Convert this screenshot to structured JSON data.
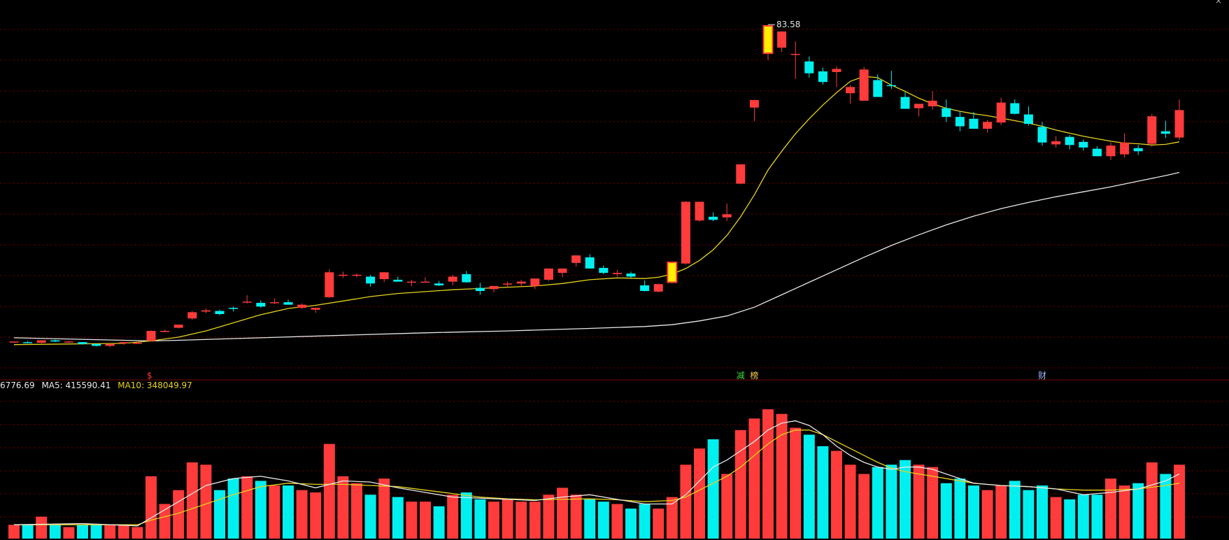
{
  "chart_data": [
    {
      "type": "candlestick",
      "title": "",
      "peak_label": "83.58",
      "markers": [
        {
          "text": "$",
          "index": 10,
          "color": "#ff3b3b"
        },
        {
          "text": "减",
          "index": 53,
          "color": "#3bdc3b"
        },
        {
          "text": "榜",
          "index": 54,
          "color": "#ffd24a"
        },
        {
          "text": "财",
          "index": 75,
          "color": "#9fb6ff"
        }
      ],
      "ylim": [
        30.5,
        86
      ],
      "grid": true,
      "colors": {
        "up": "#ff3b3b",
        "down": "#00f0f0",
        "highlight": "#ffee00",
        "ma_short": "#e6d21c",
        "ma_long": "#e8e8e8"
      },
      "ohlc": [
        [
          33.4,
          33.5,
          33.3,
          33.5
        ],
        [
          33.4,
          33.6,
          33.3,
          33.3
        ],
        [
          33.3,
          33.7,
          33.2,
          33.7
        ],
        [
          33.7,
          33.8,
          33.4,
          33.5
        ],
        [
          33.5,
          33.6,
          33.3,
          33.5
        ],
        [
          33.4,
          33.4,
          33.0,
          33.1
        ],
        [
          33.1,
          33.1,
          32.7,
          32.8
        ],
        [
          32.8,
          33.2,
          32.6,
          33.1
        ],
        [
          33.2,
          33.4,
          33.0,
          33.4
        ],
        [
          33.3,
          33.5,
          33.2,
          33.3
        ],
        [
          33.6,
          35.3,
          33.5,
          35.2
        ],
        [
          35.2,
          35.4,
          35.0,
          35.2
        ],
        [
          35.7,
          36.2,
          35.6,
          36.2
        ],
        [
          37.2,
          38.4,
          37.0,
          38.2
        ],
        [
          38.3,
          38.8,
          38.0,
          38.5
        ],
        [
          38.4,
          38.6,
          37.7,
          37.9
        ],
        [
          38.9,
          39.1,
          38.3,
          38.8
        ],
        [
          39.9,
          40.9,
          39.6,
          39.9
        ],
        [
          39.7,
          40.1,
          38.9,
          39.1
        ],
        [
          39.8,
          40.4,
          39.5,
          39.8
        ],
        [
          39.8,
          40.2,
          39.4,
          39.4
        ],
        [
          38.9,
          39.6,
          38.7,
          39.4
        ],
        [
          38.6,
          38.9,
          38.1,
          38.9
        ],
        [
          40.6,
          45.1,
          40.5,
          44.6
        ],
        [
          44.2,
          44.7,
          43.7,
          44.2
        ],
        [
          44.2,
          44.4,
          43.8,
          44.2
        ],
        [
          43.9,
          44.2,
          42.3,
          42.8
        ],
        [
          43.5,
          44.6,
          43.0,
          44.6
        ],
        [
          43.4,
          43.9,
          43.1,
          43.1
        ],
        [
          43.1,
          43.4,
          42.4,
          43.1
        ],
        [
          43.1,
          43.8,
          43.0,
          43.1
        ],
        [
          42.8,
          43.2,
          42.4,
          42.5
        ],
        [
          43.1,
          44.2,
          42.5,
          43.9
        ],
        [
          44.3,
          44.8,
          42.9,
          43.0
        ],
        [
          42.1,
          42.9,
          41.0,
          41.6
        ],
        [
          41.9,
          42.4,
          41.4,
          42.4
        ],
        [
          42.8,
          43.1,
          42.2,
          42.8
        ],
        [
          42.8,
          43.4,
          42.3,
          43.1
        ],
        [
          42.4,
          43.4,
          41.9,
          43.6
        ],
        [
          43.4,
          45.0,
          43.2,
          45.2
        ],
        [
          44.5,
          45.2,
          43.8,
          45.2
        ],
        [
          46.1,
          47.0,
          45.5,
          47.3
        ],
        [
          47.0,
          47.5,
          45.2,
          45.2
        ],
        [
          45.3,
          45.7,
          44.3,
          44.5
        ],
        [
          44.3,
          45.0,
          43.9,
          44.5
        ],
        [
          44.4,
          44.7,
          43.7,
          43.9
        ],
        [
          42.5,
          43.3,
          41.5,
          41.6
        ],
        [
          41.5,
          42.8,
          41.4,
          42.7
        ],
        [
          43.0,
          46.2,
          42.8,
          46.2
        ],
        [
          46.0,
          56.0,
          45.8,
          55.9
        ],
        [
          52.9,
          55.7,
          52.7,
          55.9
        ],
        [
          53.5,
          54.2,
          52.8,
          53.0
        ],
        [
          53.4,
          55.6,
          52.8,
          53.9
        ],
        [
          58.8,
          61.4,
          58.7,
          61.9
        ],
        [
          71.0,
          72.3,
          68.8,
          72.2
        ],
        [
          79.7,
          84.3,
          78.6,
          84.1
        ],
        [
          80.6,
          83.1,
          79.9,
          83.2
        ],
        [
          79.6,
          81.6,
          75.6,
          79.6
        ],
        [
          78.4,
          79.2,
          75.8,
          76.5
        ],
        [
          76.8,
          77.4,
          74.7,
          75.1
        ],
        [
          76.7,
          77.6,
          74.3,
          77.2
        ],
        [
          73.3,
          74.6,
          71.6,
          74.3
        ],
        [
          72.1,
          77.5,
          72.1,
          77.1
        ],
        [
          75.4,
          76.3,
          73.0,
          72.7
        ],
        [
          74.6,
          76.9,
          74.0,
          74.5
        ],
        [
          72.7,
          73.5,
          70.9,
          70.8
        ],
        [
          70.9,
          71.6,
          69.6,
          71.6
        ],
        [
          71.2,
          73.6,
          70.7,
          72.1
        ],
        [
          70.9,
          72.3,
          68.7,
          69.5
        ],
        [
          69.5,
          70.4,
          67.2,
          68.0
        ],
        [
          69.2,
          70.3,
          67.6,
          67.6
        ],
        [
          67.6,
          69.0,
          67.0,
          68.7
        ],
        [
          68.6,
          72.6,
          68.2,
          71.8
        ],
        [
          71.7,
          72.3,
          69.9,
          70.0
        ],
        [
          69.9,
          71.2,
          68.1,
          68.4
        ],
        [
          67.9,
          68.7,
          64.9,
          65.4
        ],
        [
          65.1,
          66.4,
          64.6,
          65.6
        ],
        [
          66.3,
          66.6,
          64.3,
          65.0
        ],
        [
          65.5,
          65.9,
          64.1,
          64.6
        ],
        [
          64.4,
          64.8,
          63.2,
          63.2
        ],
        [
          63.2,
          65.4,
          62.6,
          64.9
        ],
        [
          63.5,
          66.9,
          63.0,
          65.4
        ],
        [
          64.5,
          65.0,
          63.4,
          64.0
        ],
        [
          65.2,
          70.0,
          64.7,
          69.6
        ],
        [
          67.2,
          68.9,
          66.1,
          66.8
        ],
        [
          66.2,
          72.3,
          65.8,
          70.6
        ]
      ],
      "highlight_indices": [
        48,
        55
      ],
      "ma_short": [
        [
          0,
          33.0
        ],
        [
          8,
          33.2
        ],
        [
          10,
          33.6
        ],
        [
          12,
          34.2
        ],
        [
          14,
          35.2
        ],
        [
          16,
          36.5
        ],
        [
          18,
          37.8
        ],
        [
          20,
          38.8
        ],
        [
          22,
          39.3
        ],
        [
          24,
          40.0
        ],
        [
          26,
          40.7
        ],
        [
          28,
          41.2
        ],
        [
          30,
          41.5
        ],
        [
          32,
          41.8
        ],
        [
          34,
          42.0
        ],
        [
          36,
          42.2
        ],
        [
          38,
          42.4
        ],
        [
          40,
          42.8
        ],
        [
          42,
          43.4
        ],
        [
          44,
          43.7
        ],
        [
          46,
          43.6
        ],
        [
          47,
          43.8
        ],
        [
          48,
          44.3
        ],
        [
          49,
          45.2
        ],
        [
          50,
          46.5
        ],
        [
          51,
          48.2
        ],
        [
          52,
          50.5
        ],
        [
          53,
          53.5
        ],
        [
          54,
          57.0
        ],
        [
          55,
          61.0
        ],
        [
          56,
          64.0
        ],
        [
          57,
          66.8
        ],
        [
          58,
          69.2
        ],
        [
          59,
          71.4
        ],
        [
          60,
          73.4
        ],
        [
          61,
          75.2
        ],
        [
          62,
          76.0
        ],
        [
          63,
          75.8
        ],
        [
          64,
          74.6
        ],
        [
          65,
          73.6
        ],
        [
          66,
          72.5
        ],
        [
          67,
          71.6
        ],
        [
          68,
          70.9
        ],
        [
          69,
          70.4
        ],
        [
          70,
          70.0
        ],
        [
          71,
          69.7
        ],
        [
          72,
          69.3
        ],
        [
          73,
          68.9
        ],
        [
          74,
          68.5
        ],
        [
          75,
          68.0
        ],
        [
          76,
          67.4
        ],
        [
          77,
          66.9
        ],
        [
          78,
          66.4
        ],
        [
          79,
          66.0
        ],
        [
          80,
          65.6
        ],
        [
          81,
          65.3
        ],
        [
          82,
          65.2
        ],
        [
          83,
          65.0
        ],
        [
          84,
          65.1
        ],
        [
          85,
          65.5
        ]
      ],
      "ma_long": [
        [
          0,
          34.1
        ],
        [
          10,
          33.6
        ],
        [
          12,
          33.7
        ],
        [
          18,
          34.1
        ],
        [
          24,
          34.5
        ],
        [
          30,
          34.9
        ],
        [
          36,
          35.2
        ],
        [
          42,
          35.6
        ],
        [
          46,
          35.9
        ],
        [
          48,
          36.2
        ],
        [
          50,
          36.8
        ],
        [
          52,
          37.6
        ],
        [
          54,
          39.0
        ],
        [
          56,
          41.0
        ],
        [
          58,
          43.0
        ],
        [
          60,
          45.0
        ],
        [
          62,
          47.0
        ],
        [
          64,
          48.9
        ],
        [
          66,
          50.6
        ],
        [
          68,
          52.2
        ],
        [
          70,
          53.6
        ],
        [
          72,
          54.8
        ],
        [
          74,
          55.8
        ],
        [
          76,
          56.7
        ],
        [
          78,
          57.5
        ],
        [
          80,
          58.3
        ],
        [
          82,
          59.2
        ],
        [
          84,
          60.1
        ],
        [
          85,
          60.6
        ]
      ]
    },
    {
      "type": "bar",
      "title": "",
      "legend": [
        {
          "text": "6776.69",
          "color": "#e8e8e8"
        },
        {
          "text": "MA5: 415590.41",
          "color": "#e8e8e8"
        },
        {
          "text": "MA10: 348049.97",
          "color": "#e6d21c"
        }
      ],
      "ylim": [
        0,
        630000
      ],
      "grid": true,
      "values": [
        60000,
        60000,
        95000,
        60000,
        50000,
        60000,
        60000,
        60000,
        60000,
        50000,
        270000,
        150000,
        210000,
        330000,
        320000,
        210000,
        260000,
        270000,
        250000,
        230000,
        230000,
        210000,
        200000,
        410000,
        270000,
        240000,
        190000,
        260000,
        180000,
        160000,
        160000,
        140000,
        190000,
        200000,
        170000,
        160000,
        170000,
        160000,
        160000,
        190000,
        220000,
        190000,
        170000,
        160000,
        150000,
        130000,
        150000,
        130000,
        180000,
        320000,
        390000,
        430000,
        280000,
        470000,
        520000,
        560000,
        540000,
        480000,
        450000,
        400000,
        380000,
        320000,
        280000,
        310000,
        320000,
        340000,
        320000,
        310000,
        240000,
        260000,
        230000,
        210000,
        230000,
        250000,
        210000,
        230000,
        180000,
        170000,
        190000,
        190000,
        260000,
        230000,
        240000,
        330000,
        280000,
        320000
      ],
      "colors_up_down": "candle",
      "ma5": [
        [
          0,
          60000
        ],
        [
          5,
          65000
        ],
        [
          9,
          55000
        ],
        [
          10,
          90000
        ],
        [
          12,
          160000
        ],
        [
          14,
          230000
        ],
        [
          16,
          260000
        ],
        [
          18,
          270000
        ],
        [
          20,
          250000
        ],
        [
          22,
          220000
        ],
        [
          24,
          250000
        ],
        [
          26,
          245000
        ],
        [
          28,
          220000
        ],
        [
          30,
          200000
        ],
        [
          32,
          180000
        ],
        [
          34,
          175000
        ],
        [
          36,
          170000
        ],
        [
          38,
          165000
        ],
        [
          40,
          180000
        ],
        [
          42,
          190000
        ],
        [
          44,
          170000
        ],
        [
          46,
          150000
        ],
        [
          48,
          150000
        ],
        [
          49,
          190000
        ],
        [
          50,
          250000
        ],
        [
          51,
          310000
        ],
        [
          52,
          340000
        ],
        [
          53,
          380000
        ],
        [
          54,
          420000
        ],
        [
          55,
          470000
        ],
        [
          56,
          500000
        ],
        [
          57,
          510000
        ],
        [
          58,
          490000
        ],
        [
          59,
          450000
        ],
        [
          60,
          400000
        ],
        [
          61,
          360000
        ],
        [
          62,
          330000
        ],
        [
          63,
          310000
        ],
        [
          64,
          300000
        ],
        [
          65,
          310000
        ],
        [
          66,
          310000
        ],
        [
          67,
          300000
        ],
        [
          68,
          280000
        ],
        [
          69,
          260000
        ],
        [
          70,
          240000
        ],
        [
          72,
          230000
        ],
        [
          74,
          225000
        ],
        [
          76,
          215000
        ],
        [
          78,
          190000
        ],
        [
          80,
          200000
        ],
        [
          82,
          215000
        ],
        [
          84,
          250000
        ],
        [
          85,
          280000
        ]
      ],
      "ma10": [
        [
          0,
          60000
        ],
        [
          9,
          60000
        ],
        [
          10,
          80000
        ],
        [
          12,
          110000
        ],
        [
          14,
          150000
        ],
        [
          16,
          190000
        ],
        [
          18,
          225000
        ],
        [
          20,
          240000
        ],
        [
          22,
          235000
        ],
        [
          24,
          235000
        ],
        [
          26,
          230000
        ],
        [
          28,
          225000
        ],
        [
          30,
          210000
        ],
        [
          32,
          195000
        ],
        [
          34,
          180000
        ],
        [
          36,
          172000
        ],
        [
          38,
          168000
        ],
        [
          40,
          170000
        ],
        [
          42,
          172000
        ],
        [
          44,
          168000
        ],
        [
          46,
          160000
        ],
        [
          48,
          165000
        ],
        [
          49,
          180000
        ],
        [
          50,
          210000
        ],
        [
          51,
          240000
        ],
        [
          52,
          270000
        ],
        [
          53,
          310000
        ],
        [
          54,
          360000
        ],
        [
          55,
          410000
        ],
        [
          56,
          450000
        ],
        [
          57,
          470000
        ],
        [
          58,
          470000
        ],
        [
          59,
          450000
        ],
        [
          60,
          420000
        ],
        [
          61,
          390000
        ],
        [
          62,
          360000
        ],
        [
          63,
          330000
        ],
        [
          64,
          305000
        ],
        [
          65,
          290000
        ],
        [
          66,
          280000
        ],
        [
          67,
          270000
        ],
        [
          68,
          260000
        ],
        [
          69,
          250000
        ],
        [
          70,
          240000
        ],
        [
          72,
          230000
        ],
        [
          74,
          225000
        ],
        [
          76,
          215000
        ],
        [
          78,
          210000
        ],
        [
          80,
          210000
        ],
        [
          82,
          215000
        ],
        [
          84,
          230000
        ],
        [
          85,
          240000
        ]
      ]
    }
  ]
}
